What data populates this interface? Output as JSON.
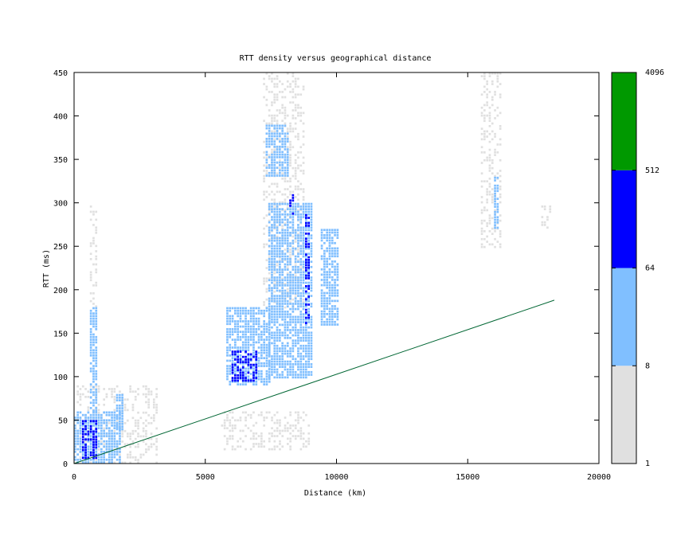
{
  "chart_data": {
    "type": "heatmap",
    "title": "RTT density versus geographical distance",
    "xlabel": "Distance (km)",
    "ylabel": "RTT (ms)",
    "xlim": [
      0,
      20000
    ],
    "ylim": [
      0,
      450
    ],
    "xticks": [
      0,
      5000,
      10000,
      15000,
      20000
    ],
    "yticks": [
      0,
      50,
      100,
      150,
      200,
      250,
      300,
      350,
      400,
      450
    ],
    "grid": false,
    "colorbar": {
      "scale": "log2",
      "tick_labels": [
        "1",
        "8",
        "64",
        "512",
        "4096"
      ],
      "levels": [
        {
          "from": 1,
          "to": 8,
          "color": "#e0e0e0"
        },
        {
          "from": 8,
          "to": 64,
          "color": "#80bfff"
        },
        {
          "from": 64,
          "to": 512,
          "color": "#0000ff"
        },
        {
          "from": 512,
          "to": 4096,
          "color": "#009900"
        }
      ]
    },
    "reference_line": {
      "color": "#006633",
      "points": [
        [
          0,
          0
        ],
        [
          18300,
          188
        ]
      ]
    },
    "density_regions": [
      {
        "x": [
          0,
          1800
        ],
        "y": [
          0,
          60
        ],
        "level": 2
      },
      {
        "x": [
          300,
          900
        ],
        "y": [
          5,
          50
        ],
        "level": 3
      },
      {
        "x": [
          100,
          3200
        ],
        "y": [
          0,
          90
        ],
        "level": 1
      },
      {
        "x": [
          600,
          900
        ],
        "y": [
          60,
          180
        ],
        "level": 2
      },
      {
        "x": [
          600,
          900
        ],
        "y": [
          180,
          300
        ],
        "level": 1
      },
      {
        "x": [
          1600,
          1900
        ],
        "y": [
          40,
          80
        ],
        "level": 2
      },
      {
        "x": [
          5800,
          7500
        ],
        "y": [
          90,
          180
        ],
        "level": 2
      },
      {
        "x": [
          6000,
          7000
        ],
        "y": [
          95,
          130
        ],
        "level": 3
      },
      {
        "x": [
          7400,
          9100
        ],
        "y": [
          100,
          300
        ],
        "level": 2
      },
      {
        "x": [
          7300,
          8200
        ],
        "y": [
          330,
          390
        ],
        "level": 2
      },
      {
        "x": [
          7200,
          8800
        ],
        "y": [
          180,
          450
        ],
        "level": 1
      },
      {
        "x": [
          8200,
          8400
        ],
        "y": [
          280,
          310
        ],
        "level": 3
      },
      {
        "x": [
          8800,
          9000
        ],
        "y": [
          160,
          290
        ],
        "level": 3
      },
      {
        "x": [
          9400,
          10100
        ],
        "y": [
          160,
          270
        ],
        "level": 2
      },
      {
        "x": [
          5600,
          9000
        ],
        "y": [
          15,
          60
        ],
        "level": 1
      },
      {
        "x": [
          16000,
          16200
        ],
        "y": [
          270,
          330
        ],
        "level": 2
      },
      {
        "x": [
          15500,
          16300
        ],
        "y": [
          250,
          450
        ],
        "level": 1
      },
      {
        "x": [
          17800,
          18200
        ],
        "y": [
          270,
          300
        ],
        "level": 1
      }
    ]
  }
}
